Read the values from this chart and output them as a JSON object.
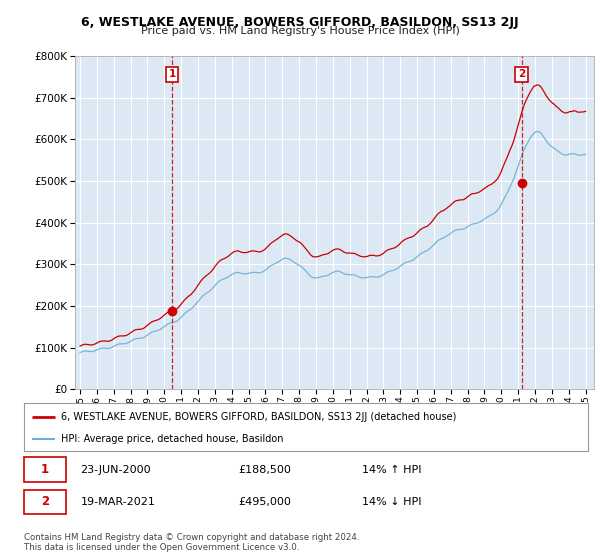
{
  "title": "6, WESTLAKE AVENUE, BOWERS GIFFORD, BASILDON, SS13 2JJ",
  "subtitle": "Price paid vs. HM Land Registry's House Price Index (HPI)",
  "sale1_label": "1",
  "sale1_date": "23-JUN-2000",
  "sale1_price": 188500,
  "sale1_year": 2000.46,
  "sale1_hpi": "14% ↑ HPI",
  "sale2_label": "2",
  "sale2_date": "19-MAR-2021",
  "sale2_price": 495000,
  "sale2_year": 2021.21,
  "sale2_hpi": "14% ↓ HPI",
  "legend_line1": "6, WESTLAKE AVENUE, BOWERS GIFFORD, BASILDON, SS13 2JJ (detached house)",
  "legend_line2": "HPI: Average price, detached house, Basildon",
  "footnote1": "Contains HM Land Registry data © Crown copyright and database right 2024.",
  "footnote2": "This data is licensed under the Open Government Licence v3.0.",
  "hpi_color": "#6baed6",
  "price_color": "#cc0000",
  "vline_color": "#cc0000",
  "bg_color": "#dce9f5",
  "ylim_min": 0,
  "ylim_max": 800000,
  "xlim_min": 1994.7,
  "xlim_max": 2025.5
}
